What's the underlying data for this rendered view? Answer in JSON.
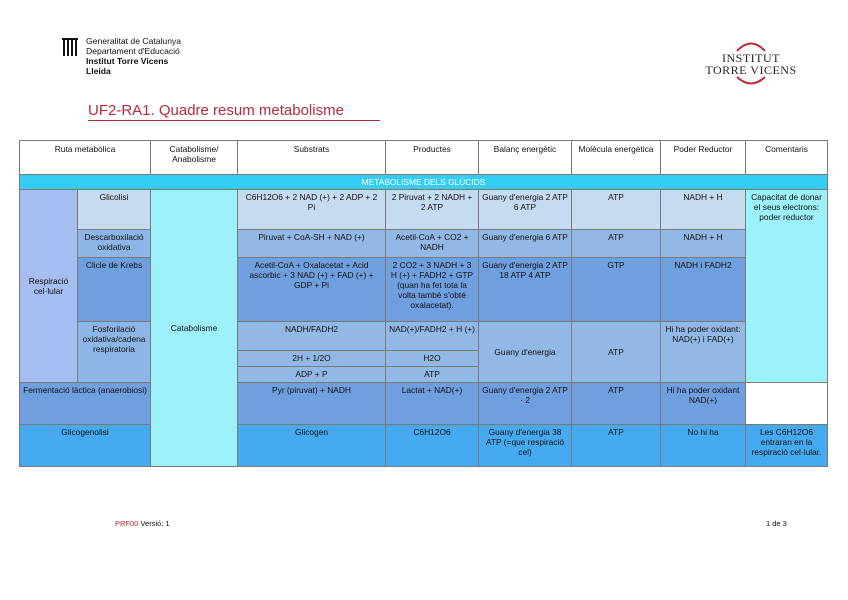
{
  "header": {
    "line1": "Generalitat de Catalunya",
    "line2": "Departament d'Educació",
    "line3": "Institut Torre Vicens",
    "line4": "Lleida",
    "institute_logo_line1": "INSTITUT",
    "institute_logo_line2": "TORRE VICENS"
  },
  "title": "UF2-RA1. Quadre resum metabolisme",
  "table": {
    "headers": {
      "ruta": "Ruta metabòlica",
      "cat": "Catabolisme/ Anabolisme",
      "substrats": "Substrats",
      "productes": "Productes",
      "balanc": "Balanç energètic",
      "molecula": "Molècula energètica",
      "poder": "Poder Reductor",
      "comentaris": "Comentaris"
    },
    "section": "METABOLISME DELS GLÚCIDS",
    "respiracio": "Respiració cel·lular",
    "catabolisme": "Catabolisme",
    "glicolisi": {
      "name": "Glicolisi",
      "substrats": "C6H12O6 + 2 NAD (+) + 2 ADP + 2 Pi",
      "productes": "2 Piruvat + 2 NADH + 2 ATP",
      "balanc": "Guany d'energia 2 ATP 6 ATP",
      "molecula": "ATP",
      "poder": "NADH + H",
      "comentari": "Capacitat de donar el seus electrons: poder reductor"
    },
    "descarb": {
      "name": "Descarboxilació oxidativa",
      "substrats": "Piruvat + CoA-SH + NAD (+)",
      "productes": "Acetil-CoA + CO2 + NADH",
      "balanc": "Guany d'energia 6 ATP",
      "molecula": "ATP",
      "poder": "NADH + H"
    },
    "krebs": {
      "name": "Clicle de Krebs",
      "substrats": "Acetil-CoA + Oxalacetat + Acid ascorbic + 3 NAD (+) + FAD (+) + GDP + Pi",
      "productes": "2 CO2 + 3 NADH + 3 H (+) + FADH2 + GTP (quan ha fet tota la volta també s'obté oxalacetat).",
      "balanc": "Guany d'energia 2 ATP 18 ATP 4 ATP",
      "molecula": "GTP",
      "poder": "NADH i FADH2"
    },
    "fosfo": {
      "name": "Fosforilació oxidativa/cadena respiratoria",
      "sub1": "NADH/FADH2",
      "prod1": "NAD(+)/FADH2 + H (+)",
      "sub2": "2H + 1/2O",
      "prod2": "H2O",
      "sub3": "ADP + P",
      "prod3": "ATP",
      "balanc": "Guany d'energia",
      "molecula": "ATP",
      "poder": "Hi ha poder oxidant: NAD(+) i FAD(+)"
    },
    "ferment": {
      "name": "Fermentació làctica (anaerobiosi)",
      "substrats": "Pyr (piruvat) + NADH",
      "productes": "Lactat + NAD(+)",
      "balanc": "Guany d'energia 2 ATP · 2",
      "molecula": "ATP",
      "poder": "Hi ha poder oxidant NAD(+)"
    },
    "glicogen": {
      "name": "Glicogenolisi",
      "substrats": "Glicogen",
      "productes": "C6H12O6",
      "balanc": "Guany d'energia 38 ATP (=que respiració cel)",
      "molecula": "ATP",
      "poder": "No hi ha",
      "comentari": "Les C6H12O6 entraran en la respiració cel·lular."
    }
  },
  "footer": {
    "code": "PRF00",
    "version": "Versió: 1",
    "page": "1 de 3"
  }
}
